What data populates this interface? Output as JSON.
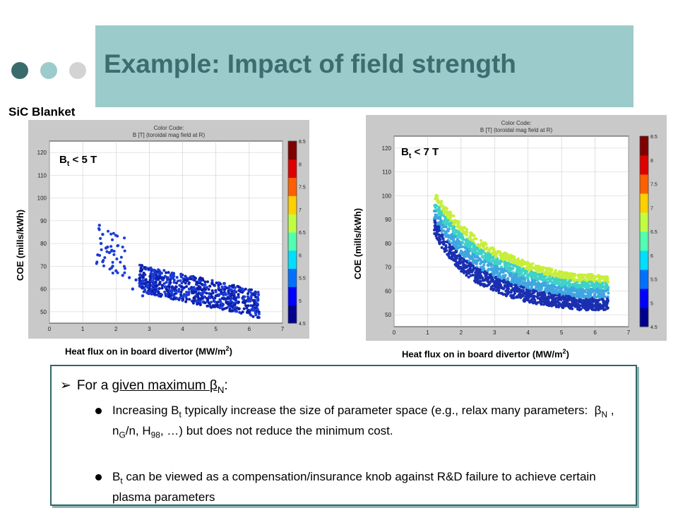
{
  "slide": {
    "title": "Example: Impact of field strength",
    "blanket_label": "SiC Blanket",
    "box": {
      "heading_prefix": "For a ",
      "heading_underlined": "given maximum ",
      "heading_beta": "β",
      "heading_sub": "N",
      "heading_suffix": ":",
      "bullet1": "Increasing Bt typically increase the size of parameter space (e.g., relax many parameters: βN , nG/n, H98, …) but does not reduce the minimum cost.",
      "bullet2": "Bt can be viewed as a compensation/insurance knob against R&D failure to achieve certain plasma parameters"
    }
  },
  "chart_data": [
    {
      "type": "scatter",
      "annotation": "Bt < 5 T",
      "legend_title": "Color Code:",
      "legend_subtitle": "B [T] (toroidal mag field at R)",
      "xlabel": "Heat flux on in board divertor (MW/m2)",
      "ylabel": "COE (mills/kWh)",
      "xlim": [
        0,
        7
      ],
      "ylim": [
        45,
        125
      ],
      "xticks": [
        0,
        1,
        2,
        3,
        4,
        5,
        6,
        7
      ],
      "yticks": [
        50,
        60,
        70,
        80,
        90,
        100,
        110,
        120
      ],
      "colorbar": {
        "min": 4.5,
        "max": 8.5,
        "ticks": [
          4.5,
          5,
          5.5,
          6,
          6.5,
          7,
          7.5,
          8,
          8.5
        ]
      },
      "grid": true,
      "series_colors": [
        "#1a3bd8",
        "#0d1fa8"
      ],
      "points": [
        [
          1.5,
          88
        ],
        [
          1.6,
          84
        ],
        [
          1.55,
          80
        ],
        [
          1.7,
          78
        ],
        [
          1.45,
          75
        ],
        [
          1.8,
          76
        ],
        [
          1.6,
          72
        ],
        [
          1.9,
          70
        ],
        [
          2.0,
          68
        ],
        [
          2.2,
          66
        ],
        [
          2.4,
          65
        ],
        [
          2.6,
          64
        ],
        [
          2.8,
          66
        ],
        [
          3.0,
          63
        ],
        [
          3.2,
          65
        ],
        [
          3.4,
          64
        ],
        [
          3.6,
          62
        ],
        [
          3.8,
          61
        ],
        [
          4.0,
          60
        ],
        [
          4.2,
          60
        ],
        [
          4.4,
          59
        ],
        [
          4.6,
          58
        ],
        [
          4.8,
          58
        ],
        [
          5.0,
          57
        ],
        [
          5.2,
          56
        ],
        [
          5.4,
          56
        ],
        [
          5.6,
          55
        ],
        [
          5.8,
          56
        ],
        [
          6.0,
          55
        ],
        [
          6.2,
          54
        ],
        [
          3.0,
          58
        ],
        [
          3.5,
          57
        ],
        [
          4.0,
          55
        ],
        [
          4.5,
          54
        ],
        [
          5.0,
          53
        ],
        [
          3.3,
          68
        ],
        [
          3.7,
          66
        ],
        [
          4.1,
          64
        ],
        [
          2.5,
          60
        ],
        [
          2.8,
          57
        ],
        [
          5.8,
          60
        ],
        [
          6.0,
          59
        ]
      ]
    },
    {
      "type": "scatter",
      "annotation": "Bt < 7 T",
      "legend_title": "Color Code:",
      "legend_subtitle": "B [T] (toroidal mag field at R)",
      "xlabel": "Heat flux on in board divertor (MW/m2)",
      "ylabel": "COE (mills/kWh)",
      "xlim": [
        0,
        7
      ],
      "ylim": [
        45,
        125
      ],
      "xticks": [
        0,
        1,
        2,
        3,
        4,
        5,
        6,
        7
      ],
      "yticks": [
        50,
        60,
        70,
        80,
        90,
        100,
        110,
        120
      ],
      "colorbar": {
        "min": 4.5,
        "max": 8.5,
        "ticks": [
          4.5,
          5,
          5.5,
          6,
          6.5,
          7,
          7.5,
          8,
          8.5
        ]
      },
      "grid": true,
      "series_colors": [
        "#1a2fb0",
        "#3fa6e0",
        "#3fd1c8",
        "#c8ee3a"
      ],
      "band": {
        "x": [
          1.2,
          1.5,
          2.0,
          2.5,
          3.0,
          3.5,
          4.0,
          4.5,
          5.0,
          5.5,
          6.0,
          6.4
        ],
        "upper": [
          102,
          96,
          88,
          82,
          78,
          75,
          72,
          70,
          68,
          67,
          67,
          66
        ],
        "lower": [
          84,
          76,
          68,
          63,
          60,
          57,
          55,
          54,
          53,
          52,
          52,
          52
        ]
      }
    }
  ]
}
